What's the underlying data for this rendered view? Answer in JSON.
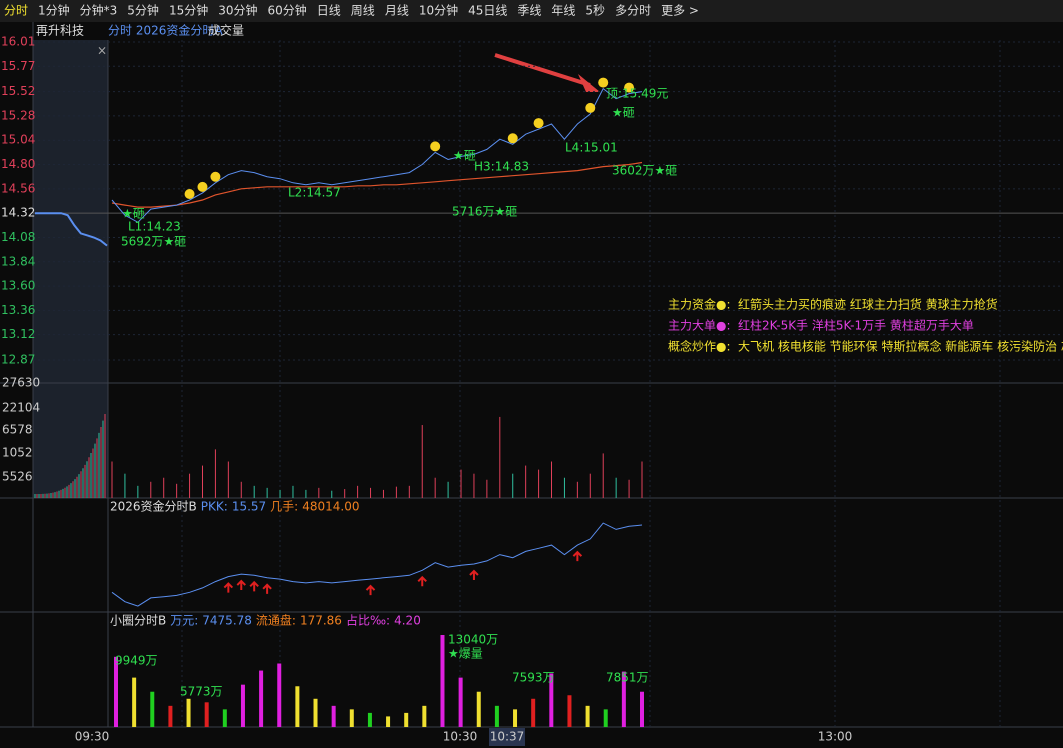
{
  "toolbar": {
    "tabs": [
      "分时",
      "1分钟",
      "分钟*3",
      "5分钟",
      "15分钟",
      "30分钟",
      "60分钟",
      "日线",
      "周线",
      "月线",
      "10分钟",
      "45日线",
      "季线",
      "年线",
      "5秒",
      "多分时",
      "更多 >"
    ]
  },
  "header": {
    "stock": "再升科技",
    "indicator": "分时 2026资金分时A",
    "volume_label": "成交量"
  },
  "chart_data": {
    "type": "line",
    "ylim": [
      12.87,
      16.01
    ],
    "yticks": [
      16.01,
      15.77,
      15.52,
      15.28,
      15.04,
      {
        "value": 14.8,
        "label": "14.80"
      },
      14.56,
      14.32,
      14.08,
      13.84,
      {
        "value": 13.6,
        "label": "13.60"
      },
      13.36,
      13.12,
      12.87
    ],
    "premarket": {
      "color": "#5b8ff0",
      "values": [
        14.32,
        14.32,
        14.32,
        14.32,
        14.32,
        14.3,
        14.2,
        14.12,
        14.1,
        14.08,
        14.05,
        14.0
      ]
    },
    "price": {
      "color": "#5b8ff0",
      "values": [
        14.45,
        14.3,
        14.23,
        14.36,
        14.38,
        14.4,
        14.45,
        14.52,
        14.62,
        14.7,
        14.74,
        14.72,
        14.68,
        14.66,
        14.62,
        14.6,
        14.62,
        14.6,
        14.62,
        14.64,
        14.66,
        14.68,
        14.7,
        14.72,
        14.8,
        14.92,
        14.85,
        14.88,
        14.9,
        14.95,
        15.05,
        15.0,
        15.1,
        15.15,
        15.2,
        15.05,
        15.2,
        15.3,
        15.55,
        15.45,
        15.5,
        15.52
      ]
    },
    "average": {
      "color": "#e0542c",
      "values": [
        14.42,
        14.4,
        14.38,
        14.38,
        14.39,
        14.4,
        14.42,
        14.45,
        14.5,
        14.53,
        14.56,
        14.57,
        14.58,
        14.58,
        14.58,
        14.58,
        14.58,
        14.58,
        14.58,
        14.59,
        14.59,
        14.6,
        14.6,
        14.61,
        14.62,
        14.63,
        14.64,
        14.65,
        14.66,
        14.67,
        14.68,
        14.69,
        14.7,
        14.71,
        14.72,
        14.73,
        14.74,
        14.76,
        14.78,
        14.79,
        14.8,
        14.82
      ]
    },
    "annotations": [
      "★砸",
      "L1:14.23",
      "5692万★砸",
      "L2:14.57",
      "5716万★砸",
      "★砸",
      "H3:14.83",
      "L4:15.01",
      "顶:15.49元",
      "★砸",
      "3602万★砸"
    ],
    "legend": [
      {
        "label": "主力资金●:",
        "text": "红箭头主力买的痕迹    红球主力扫货    黄球主力抢货",
        "color": "#f0e030"
      },
      {
        "label": "主力大单●:",
        "text": "红柱2K-5K手     洋柱5K-1万手     黄柱超万手大单",
        "color": "#e040e0"
      },
      {
        "label": "概念炒作●:",
        "text": "大飞机 核电核能 节能环保 特斯拉概念 新能源车 核污染防治 芯",
        "color": "#f0e030"
      }
    ]
  },
  "volume": {
    "axis_labels": [
      27630,
      22104,
      6578,
      1052,
      5526
    ],
    "max": 27630,
    "values": [
      9000,
      6000,
      3000,
      4000,
      5000,
      3500,
      6000,
      8000,
      12000,
      9000,
      4000,
      3000,
      2500,
      2000,
      3000,
      2000,
      2500,
      1800,
      2200,
      3000,
      2500,
      2000,
      2800,
      3000,
      18000,
      5000,
      4000,
      7000,
      6000,
      4500,
      20000,
      6000,
      8000,
      7000,
      9000,
      5000,
      4000,
      6000,
      11000,
      5000,
      4500,
      9000
    ]
  },
  "indicator_b": {
    "name": "2026资金分时B",
    "pkk_label": "PKK:",
    "pkk": 15.57,
    "hand_label": "几手:",
    "hand": {
      "value": 48014,
      "label": "48014.00"
    }
  },
  "small_circle": {
    "name": "小圈分时B",
    "wan_label": "万元:",
    "wan": 7475.78,
    "float_label": "流通盘:",
    "float": 177.86,
    "ratio_label": "占比‰:",
    "ratio": {
      "value": 4.2,
      "label": "4.20"
    },
    "annotations": [
      "9949万",
      "5773万",
      "13040万",
      "★爆量",
      "7593万",
      "7851万"
    ],
    "values": [
      9949,
      7000,
      5000,
      3000,
      4000,
      3500,
      2500,
      6000,
      8000,
      9000,
      5773,
      4000,
      3000,
      2500,
      2000,
      1500,
      2000,
      3000,
      13040,
      7000,
      5000,
      3000,
      2500,
      4000,
      7593,
      4500,
      3000,
      2500,
      7851,
      5000
    ],
    "colors": [
      "#e020e0",
      "#f0e030",
      "#20d020",
      "#e02020",
      "#f0e030",
      "#e02020",
      "#20d020",
      "#e020e0",
      "#e020e0",
      "#e020e0",
      "#f0e030",
      "#f0e030",
      "#e020e0",
      "#f0e030",
      "#20d020",
      "#f0e030",
      "#f0e030",
      "#f0e030",
      "#e020e0",
      "#e020e0",
      "#f0e030",
      "#20d020",
      "#f0e030",
      "#e02020",
      "#e020e0",
      "#e02020",
      "#f0e030",
      "#20d020",
      "#e020e0",
      "#e020e0"
    ]
  },
  "time_axis": [
    "09:30",
    "10:30",
    "10:37",
    "13:00"
  ]
}
